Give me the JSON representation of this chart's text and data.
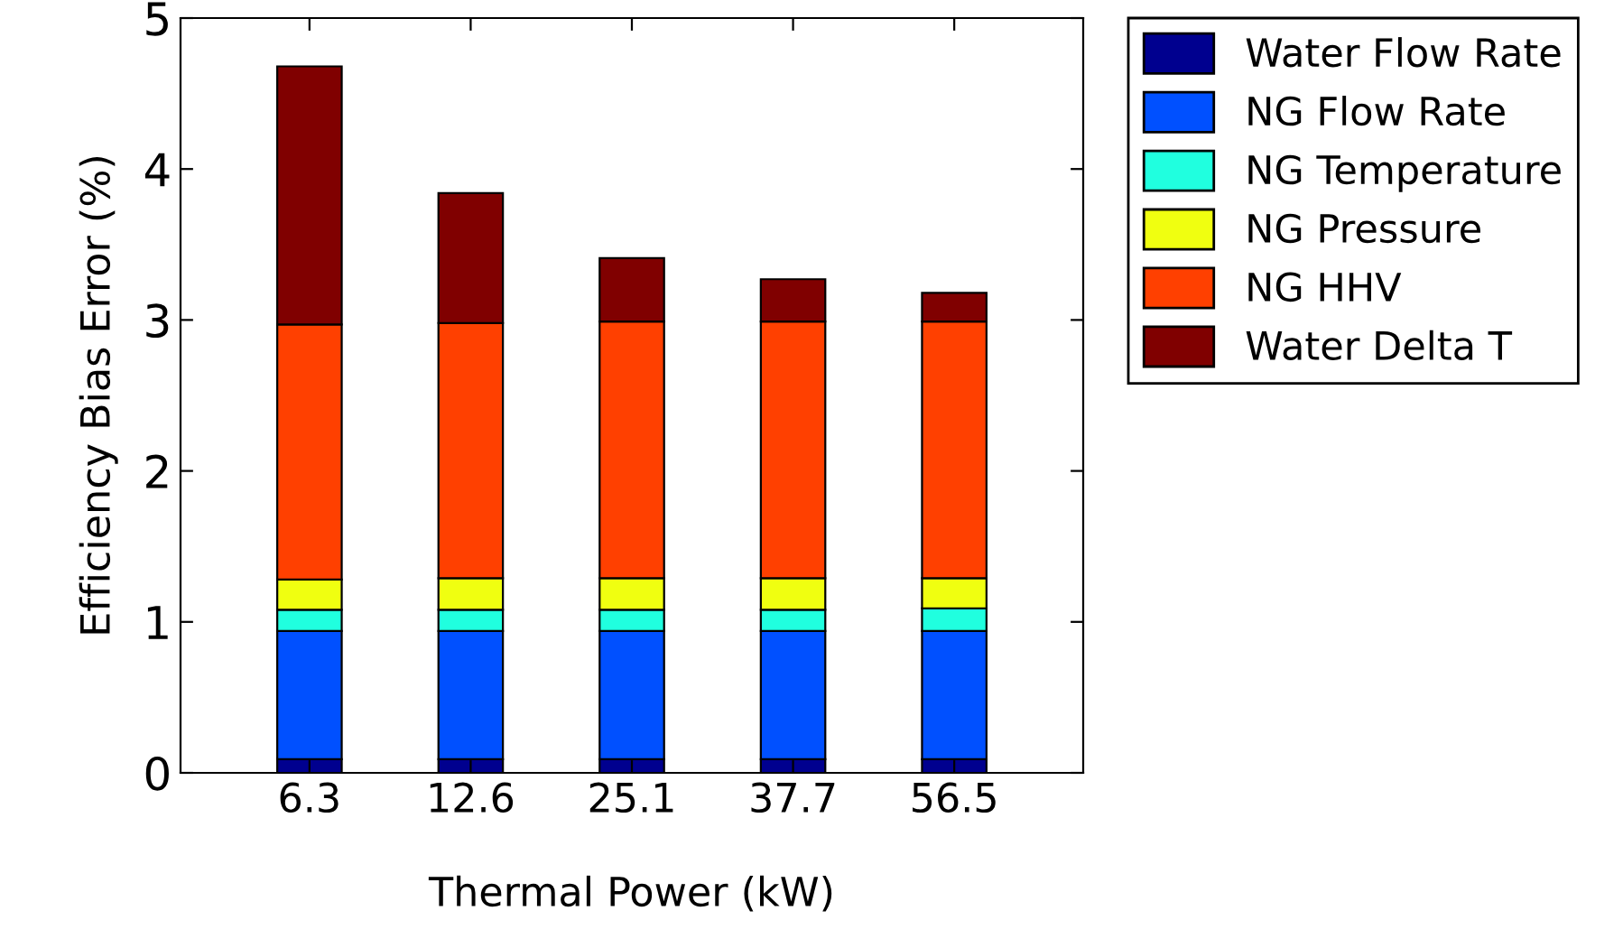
{
  "chart_data": {
    "type": "bar",
    "stacked": true,
    "xlabel": "Thermal Power (kW)",
    "ylabel": "Efficiency Bias Error (%)",
    "categories": [
      "6.3",
      "12.6",
      "25.1",
      "37.7",
      "56.5"
    ],
    "series": [
      {
        "name": "Water Flow Rate",
        "color": "#00008f",
        "values": [
          0.09,
          0.09,
          0.09,
          0.09,
          0.09
        ]
      },
      {
        "name": "NG Flow Rate",
        "color": "#0050ff",
        "values": [
          0.85,
          0.85,
          0.85,
          0.85,
          0.85
        ]
      },
      {
        "name": "NG Temperature",
        "color": "#20ffdf",
        "values": [
          0.14,
          0.14,
          0.14,
          0.14,
          0.15
        ]
      },
      {
        "name": "NG Pressure",
        "color": "#f0ff10",
        "values": [
          0.2,
          0.21,
          0.21,
          0.21,
          0.2
        ]
      },
      {
        "name": "NG HHV",
        "color": "#ff4000",
        "values": [
          1.69,
          1.69,
          1.7,
          1.7,
          1.7
        ]
      },
      {
        "name": "Water Delta T",
        "color": "#800000",
        "values": [
          1.71,
          0.86,
          0.42,
          0.28,
          0.19
        ]
      }
    ],
    "ylim": [
      0,
      5
    ],
    "yticks": [
      0,
      1,
      2,
      3,
      4,
      5
    ],
    "grid": false,
    "legend": "top right"
  }
}
